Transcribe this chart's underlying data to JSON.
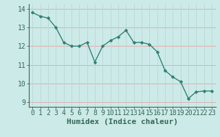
{
  "x": [
    0,
    1,
    2,
    3,
    4,
    5,
    6,
    7,
    8,
    9,
    10,
    11,
    12,
    13,
    14,
    15,
    16,
    17,
    18,
    19,
    20,
    21,
    22,
    23
  ],
  "y": [
    13.8,
    13.6,
    13.5,
    13.0,
    12.2,
    12.0,
    12.0,
    12.2,
    11.15,
    12.0,
    12.3,
    12.5,
    12.85,
    12.2,
    12.2,
    12.1,
    11.7,
    10.7,
    10.35,
    10.1,
    9.2,
    9.55,
    9.6,
    9.6
  ],
  "line_color": "#2e7f72",
  "marker": "D",
  "marker_size": 2.5,
  "bg_color": "#cceae7",
  "grid_color_h": "#e8a0a0",
  "grid_color_v": "#b8d8d5",
  "axis_color": "#336655",
  "xlabel": "Humidex (Indice chaleur)",
  "xlabel_fontsize": 8,
  "tick_fontsize": 7,
  "ylim": [
    8.75,
    14.25
  ],
  "yticks": [
    9,
    10,
    11,
    12,
    13,
    14
  ],
  "xlim": [
    -0.5,
    23.5
  ]
}
